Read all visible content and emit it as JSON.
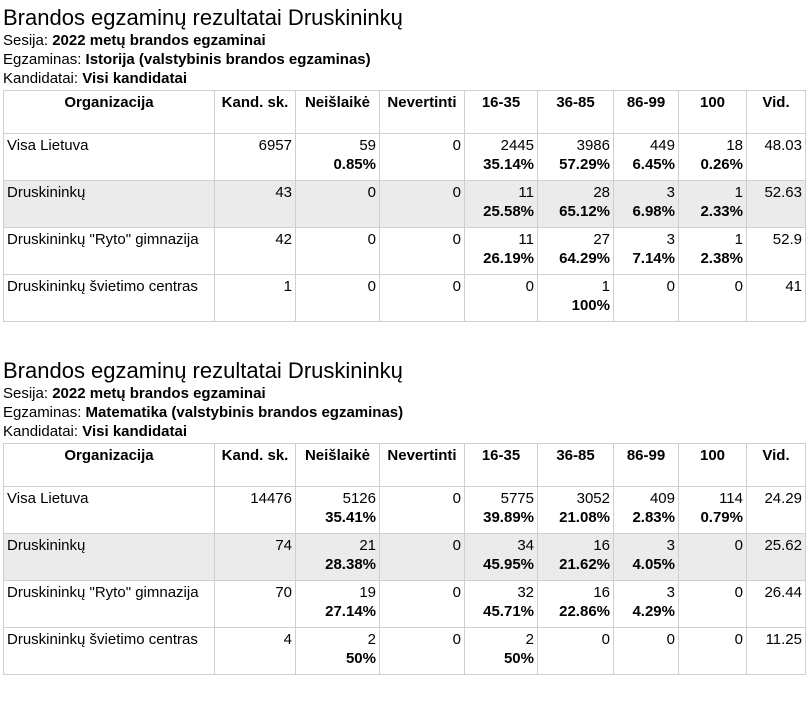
{
  "reports": [
    {
      "title": "Brandos egzaminų rezultatai Druskininkų",
      "session_label": "Sesija:",
      "session_value": "2022 metų brandos egzaminai",
      "exam_label": "Egzaminas:",
      "exam_value": "Istorija (valstybinis brandos egzaminas)",
      "candidates_label": "Kandidatai:",
      "candidates_value": "Visi kandidatai",
      "headers": [
        "Organizacija",
        "Kand. sk.",
        "Neišlaikė",
        "Nevertinti",
        "16-35",
        "36-85",
        "86-99",
        "100",
        "Vid."
      ],
      "rows": [
        {
          "org": "Visa Lietuva",
          "kand": "6957",
          "neis": "59",
          "neis_pct": "0.85%",
          "nev": "0",
          "r1": "2445",
          "r1_pct": "35.14%",
          "r2": "3986",
          "r2_pct": "57.29%",
          "r3": "449",
          "r3_pct": "6.45%",
          "r4": "18",
          "r4_pct": "0.26%",
          "vid": "48.03",
          "highlight": false
        },
        {
          "org": "Druskininkų",
          "kand": "43",
          "neis": "0",
          "neis_pct": "",
          "nev": "0",
          "r1": "11",
          "r1_pct": "25.58%",
          "r2": "28",
          "r2_pct": "65.12%",
          "r3": "3",
          "r3_pct": "6.98%",
          "r4": "1",
          "r4_pct": "2.33%",
          "vid": "52.63",
          "highlight": true
        },
        {
          "org": "Druskininkų \"Ryto\" gimnazija",
          "kand": "42",
          "neis": "0",
          "neis_pct": "",
          "nev": "0",
          "r1": "11",
          "r1_pct": "26.19%",
          "r2": "27",
          "r2_pct": "64.29%",
          "r3": "3",
          "r3_pct": "7.14%",
          "r4": "1",
          "r4_pct": "2.38%",
          "vid": "52.9",
          "highlight": false
        },
        {
          "org": "Druskininkų švietimo centras",
          "kand": "1",
          "neis": "0",
          "neis_pct": "",
          "nev": "0",
          "r1": "0",
          "r1_pct": "",
          "r2": "1",
          "r2_pct": "100%",
          "r3": "0",
          "r3_pct": "",
          "r4": "0",
          "r4_pct": "",
          "vid": "41",
          "highlight": false
        }
      ]
    },
    {
      "title": "Brandos egzaminų rezultatai Druskininkų",
      "session_label": "Sesija:",
      "session_value": "2022 metų brandos egzaminai",
      "exam_label": "Egzaminas:",
      "exam_value": "Matematika (valstybinis brandos egzaminas)",
      "candidates_label": "Kandidatai:",
      "candidates_value": "Visi kandidatai",
      "headers": [
        "Organizacija",
        "Kand. sk.",
        "Neišlaikė",
        "Nevertinti",
        "16-35",
        "36-85",
        "86-99",
        "100",
        "Vid."
      ],
      "rows": [
        {
          "org": "Visa Lietuva",
          "kand": "14476",
          "neis": "5126",
          "neis_pct": "35.41%",
          "nev": "0",
          "r1": "5775",
          "r1_pct": "39.89%",
          "r2": "3052",
          "r2_pct": "21.08%",
          "r3": "409",
          "r3_pct": "2.83%",
          "r4": "114",
          "r4_pct": "0.79%",
          "vid": "24.29",
          "highlight": false
        },
        {
          "org": "Druskininkų",
          "kand": "74",
          "neis": "21",
          "neis_pct": "28.38%",
          "nev": "0",
          "r1": "34",
          "r1_pct": "45.95%",
          "r2": "16",
          "r2_pct": "21.62%",
          "r3": "3",
          "r3_pct": "4.05%",
          "r4": "0",
          "r4_pct": "",
          "vid": "25.62",
          "highlight": true
        },
        {
          "org": "Druskininkų \"Ryto\" gimnazija",
          "kand": "70",
          "neis": "19",
          "neis_pct": "27.14%",
          "nev": "0",
          "r1": "32",
          "r1_pct": "45.71%",
          "r2": "16",
          "r2_pct": "22.86%",
          "r3": "3",
          "r3_pct": "4.29%",
          "r4": "0",
          "r4_pct": "",
          "vid": "26.44",
          "highlight": false
        },
        {
          "org": "Druskininkų švietimo centras",
          "kand": "4",
          "neis": "2",
          "neis_pct": "50%",
          "nev": "0",
          "r1": "2",
          "r1_pct": "50%",
          "r2": "0",
          "r2_pct": "",
          "r3": "0",
          "r3_pct": "",
          "r4": "0",
          "r4_pct": "",
          "vid": "11.25",
          "highlight": false
        }
      ]
    }
  ]
}
